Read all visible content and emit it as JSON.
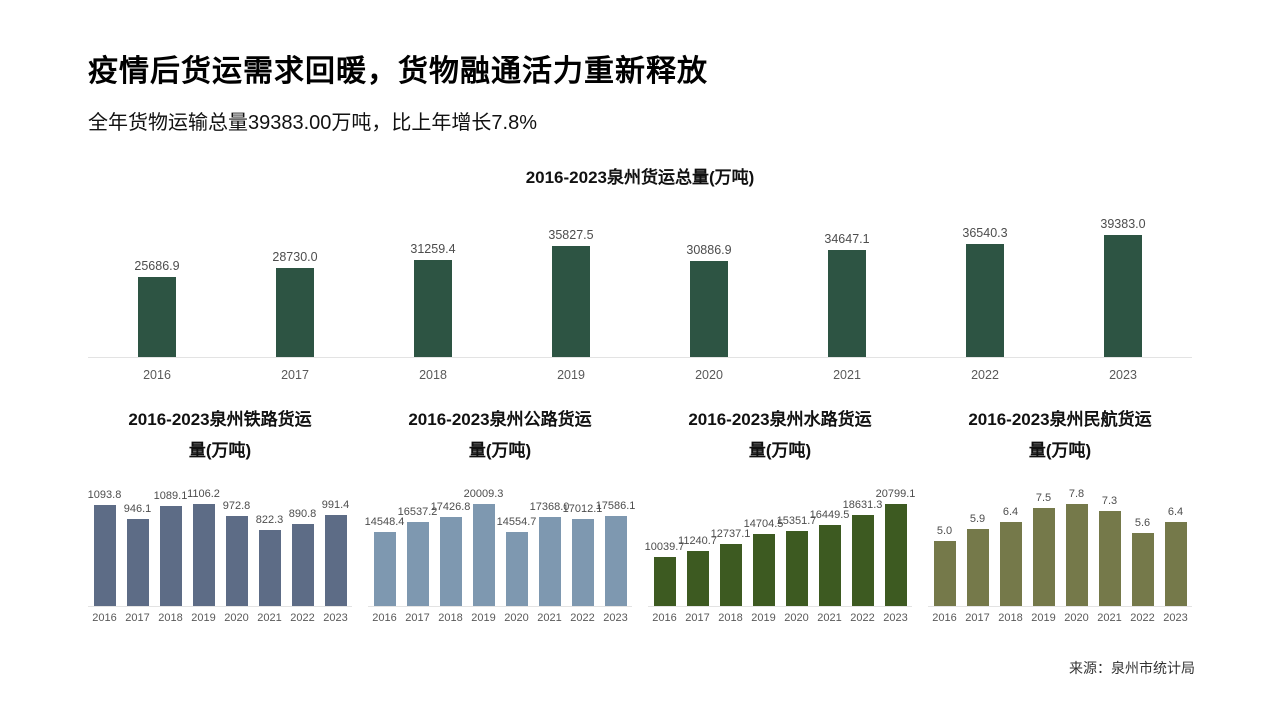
{
  "header": {
    "title": "疫情后货运需求回暖，货物融通活力重新释放",
    "subtitle": "全年货物运输总量39383.00万吨，比上年增长7.8%"
  },
  "footer": {
    "source": "来源：泉州市统计局"
  },
  "colors": {
    "total_bar": "#2d5443",
    "railway_bar": "#5d6c86",
    "highway_bar": "#7e98b0",
    "waterway_bar": "#3d5a21",
    "aviation_bar": "#75794a",
    "axis_line": "#e3e3e3",
    "value_label": "#4d4d4d",
    "tick_label": "#595959"
  },
  "chart_data": [
    {
      "type": "bar",
      "title": "2016-2023泉州货运总量(万吨)",
      "title_lines": [
        "2016-2023泉州货运总量(万吨)"
      ],
      "categories": [
        "2016",
        "2017",
        "2018",
        "2019",
        "2020",
        "2021",
        "2022",
        "2023"
      ],
      "values": [
        25686.9,
        28730.0,
        31259.4,
        35827.5,
        30886.9,
        34647.1,
        36540.3,
        39383.0
      ],
      "value_labels": [
        "25686.9",
        "28730.0",
        "31259.4",
        "35827.5",
        "30886.9",
        "34647.1",
        "36540.3",
        "39383.0"
      ],
      "bar_color": "#2d5443",
      "ylim": [
        0,
        39383
      ],
      "grid": false,
      "y_axis": "hidden",
      "legend": "none"
    },
    {
      "type": "bar",
      "title": "2016-2023泉州铁路货运量(万吨)",
      "title_lines": [
        "2016-2023泉州铁路货运",
        "量(万吨)"
      ],
      "categories": [
        "2016",
        "2017",
        "2018",
        "2019",
        "2020",
        "2021",
        "2022",
        "2023"
      ],
      "values": [
        1093.8,
        946.1,
        1089.1,
        1106.2,
        972.8,
        822.3,
        890.8,
        991.4
      ],
      "value_labels": [
        "1093.8",
        "946.1",
        "1089.1",
        "1106.2",
        "972.8",
        "822.3",
        "890.8",
        "991.4"
      ],
      "bar_color": "#5d6c86",
      "ylim": [
        0,
        1106.2
      ],
      "grid": false,
      "y_axis": "hidden",
      "legend": "none"
    },
    {
      "type": "bar",
      "title": "2016-2023泉州公路货运量(万吨)",
      "title_lines": [
        "2016-2023泉州公路货运",
        "量(万吨)"
      ],
      "categories": [
        "2016",
        "2017",
        "2018",
        "2019",
        "2020",
        "2021",
        "2022",
        "2023"
      ],
      "values": [
        14548.4,
        16537.2,
        17426.8,
        20009.3,
        14554.7,
        17368.0,
        17012.1,
        17586.1
      ],
      "value_labels": [
        "14548.4",
        "16537.2",
        "17426.8",
        "20009.3",
        "14554.7",
        "17368.0",
        "17012.1",
        "17586.1"
      ],
      "bar_color": "#7e98b0",
      "ylim": [
        0,
        20009.3
      ],
      "grid": false,
      "y_axis": "hidden",
      "legend": "none"
    },
    {
      "type": "bar",
      "title": "2016-2023泉州水路货运量(万吨)",
      "title_lines": [
        "2016-2023泉州水路货运",
        "量(万吨)"
      ],
      "categories": [
        "2016",
        "2017",
        "2018",
        "2019",
        "2020",
        "2021",
        "2022",
        "2023"
      ],
      "values": [
        10039.7,
        11240.7,
        12737.1,
        14704.5,
        15351.7,
        16449.5,
        18631.3,
        20799.1
      ],
      "value_labels": [
        "10039.7",
        "11240.7",
        "12737.1",
        "14704.5",
        "15351.7",
        "16449.5",
        "18631.3",
        "20799.1"
      ],
      "bar_color": "#3d5a21",
      "ylim": [
        0,
        20799.1
      ],
      "grid": false,
      "y_axis": "hidden",
      "legend": "none"
    },
    {
      "type": "bar",
      "title": "2016-2023泉州民航货运量(万吨)",
      "title_lines": [
        "2016-2023泉州民航货运",
        "量(万吨)"
      ],
      "categories": [
        "2016",
        "2017",
        "2018",
        "2019",
        "2020",
        "2021",
        "2022",
        "2023"
      ],
      "values": [
        5.0,
        5.9,
        6.4,
        7.5,
        7.8,
        7.3,
        5.6,
        6.4
      ],
      "value_labels": [
        "5.0",
        "5.9",
        "6.4",
        "7.5",
        "7.8",
        "7.3",
        "5.6",
        "6.4"
      ],
      "bar_color": "#75794a",
      "ylim": [
        0,
        7.8
      ],
      "grid": false,
      "y_axis": "hidden",
      "legend": "none"
    }
  ]
}
